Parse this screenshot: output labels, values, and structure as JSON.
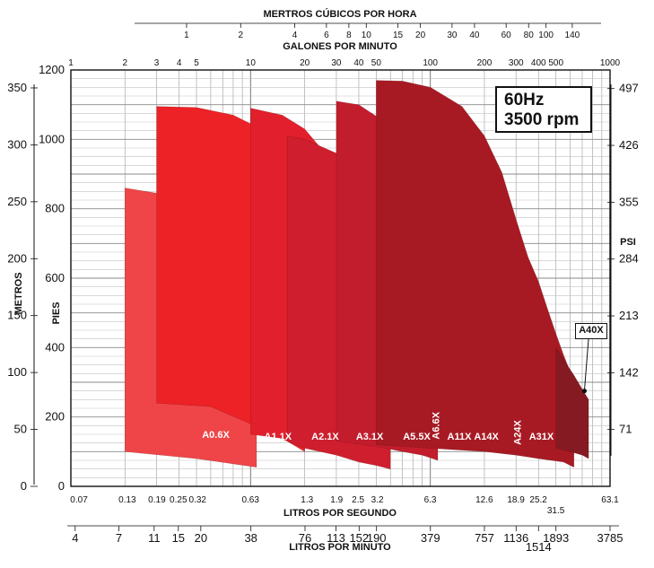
{
  "chart_data": {
    "type": "area",
    "top_axis_1": {
      "title": "MERTROS CÚBICOS POR HORA",
      "ticks": [
        "1",
        "2",
        "4",
        "6",
        "8",
        "10",
        "15",
        "20",
        "30",
        "40",
        "60",
        "80",
        "100",
        "140"
      ]
    },
    "top_axis_2": {
      "title": "GALONES POR MINUTO",
      "ticks": [
        "1",
        "2",
        "3",
        "4",
        "5",
        "10",
        "20",
        "30",
        "40",
        "50",
        "100",
        "200",
        "300",
        "400",
        "500",
        "1000"
      ]
    },
    "bottom_axis_1": {
      "title": "LITROS POR SEGUNDO",
      "ticks": [
        "0.07",
        "0.13",
        "0.19",
        "0.25",
        "0.32",
        "0.63",
        "1.3",
        "1.9",
        "2.5",
        "3.2",
        "6.3",
        "12.6",
        "18.9",
        "25.2",
        "31.5",
        "63.1"
      ]
    },
    "bottom_axis_2": {
      "title": "LITROS POR MINUTO",
      "ticks": [
        "4",
        "7",
        "11",
        "15",
        "20",
        "38",
        "76",
        "113",
        "152",
        "190",
        "379",
        "757",
        "1136",
        "1514",
        "1893",
        "3785"
      ]
    },
    "left_axis_outer": {
      "title": "METROS",
      "ticks": [
        "0",
        "50",
        "100",
        "150",
        "200",
        "250",
        "300",
        "350"
      ]
    },
    "left_axis_inner": {
      "title": "PIES",
      "ticks": [
        "0",
        "200",
        "400",
        "600",
        "800",
        "1000",
        "1200"
      ]
    },
    "right_axis": {
      "title": "PSI",
      "ticks": [
        "71",
        "142",
        "213",
        "284",
        "355",
        "426",
        "497"
      ]
    },
    "x_scale": "log",
    "x_units": "gpm",
    "y_units": "ft",
    "xlim": [
      1,
      1000
    ],
    "ylim": [
      0,
      1200
    ],
    "grid": true,
    "series": [
      {
        "name": "A0.6X",
        "color": "#ef4548",
        "x": [
          2,
          3,
          4,
          5,
          7,
          8.5,
          10,
          10.8,
          10.8,
          5,
          2
        ],
        "y": [
          860,
          845,
          825,
          800,
          755,
          710,
          620,
          560,
          55,
          80,
          100
        ]
      },
      {
        "name": "A1.1X",
        "color": "#ed2226",
        "x": [
          3,
          5,
          8,
          10,
          14,
          16,
          20,
          21,
          20,
          16,
          10,
          6,
          3
        ],
        "y": [
          1095,
          1092,
          1070,
          1045,
          975,
          905,
          560,
          390,
          100,
          130,
          180,
          230,
          240
        ]
      },
      {
        "name": "A2.1X",
        "color": "#e21f2c",
        "x": [
          10,
          15,
          20,
          25,
          30,
          35,
          40,
          40,
          30,
          20,
          10
        ],
        "y": [
          1090,
          1070,
          1030,
          970,
          890,
          780,
          560,
          95,
          110,
          130,
          150
        ]
      },
      {
        "name": "A3.1X",
        "color": "#cf1f2e",
        "x": [
          16,
          20,
          30,
          40,
          50,
          60,
          60,
          50,
          40,
          30,
          20,
          16
        ],
        "y": [
          1010,
          1000,
          960,
          880,
          760,
          620,
          50,
          60,
          70,
          90,
          110,
          130
        ]
      },
      {
        "name": "A5.5X",
        "color": "#c21d2c",
        "x": [
          30,
          40,
          60,
          80,
          100,
          110,
          110,
          90,
          70,
          50,
          30
        ],
        "y": [
          1110,
          1100,
          1040,
          960,
          830,
          740,
          75,
          90,
          100,
          115,
          130
        ]
      },
      {
        "name": "A6.6X",
        "color": "#a81a23",
        "x": [
          50,
          70,
          100,
          150,
          200,
          250,
          300,
          350,
          400,
          450,
          500,
          550,
          600,
          630,
          630,
          550,
          400,
          300,
          200,
          100,
          50
        ],
        "y": [
          1170,
          1168,
          1150,
          1095,
          1010,
          905,
          770,
          660,
          590,
          510,
          440,
          380,
          330,
          300,
          55,
          70,
          80,
          90,
          100,
          110,
          120
        ]
      },
      {
        "name": "A11X",
        "color": "#b51e2a"
      },
      {
        "name": "A14X",
        "color": "#a41b28"
      },
      {
        "name": "A24X",
        "color": "#9a1b25"
      },
      {
        "name": "A31X",
        "color": "#8f1a24"
      },
      {
        "name": "A40X",
        "color": "#861a23",
        "x": [
          500,
          560,
          630,
          700,
          760,
          760,
          700,
          600,
          500
        ],
        "y": [
          400,
          360,
          320,
          280,
          250,
          80,
          90,
          100,
          110
        ],
        "point": [
          720,
          275
        ]
      }
    ]
  },
  "badge": {
    "line1": "60Hz",
    "line2": "3500 rpm"
  }
}
